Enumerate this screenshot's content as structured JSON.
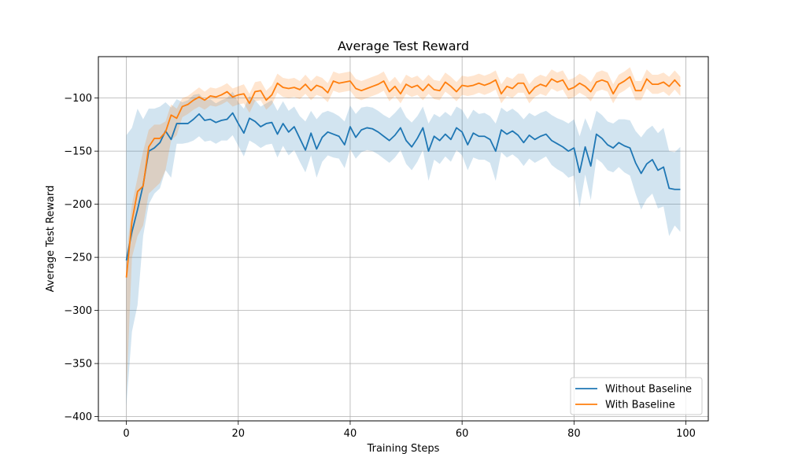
{
  "chart_data": {
    "type": "line",
    "title": "Average Test Reward",
    "xlabel": "Training Steps",
    "ylabel": "Average Test Reward",
    "xlim": [
      -5,
      104
    ],
    "ylim": [
      -404,
      -61
    ],
    "xticks": [
      0,
      20,
      40,
      60,
      80,
      100
    ],
    "yticks": [
      -400,
      -350,
      -300,
      -250,
      -200,
      -150,
      -100
    ],
    "grid": true,
    "legend_position": "lower-right",
    "colors": {
      "without": "#1f77b4",
      "with": "#ff7f0e"
    },
    "x_start": 0,
    "series": [
      {
        "name": "Without Baseline",
        "color": "#1f77b4",
        "values": [
          -253,
          -226,
          -205,
          -182,
          -150,
          -147,
          -142,
          -131,
          -139,
          -124,
          -124,
          -124,
          -120,
          -115,
          -121,
          -120,
          -123,
          -121,
          -120,
          -114,
          -124,
          -133,
          -119,
          -122,
          -127,
          -124,
          -123,
          -134,
          -124,
          -132,
          -127,
          -138,
          -149,
          -133,
          -148,
          -137,
          -132,
          -134,
          -136,
          -144,
          -127,
          -137,
          -130,
          -128,
          -129,
          -132,
          -136,
          -140,
          -135,
          -128,
          -140,
          -146,
          -138,
          -128,
          -150,
          -136,
          -140,
          -134,
          -139,
          -128,
          -132,
          -144,
          -133,
          -136,
          -136,
          -139,
          -150,
          -130,
          -134,
          -131,
          -135,
          -142,
          -135,
          -139,
          -136,
          -134,
          -140,
          -143,
          -146,
          -150,
          -147,
          -170,
          -146,
          -164,
          -134,
          -138,
          -144,
          -147,
          -142,
          -145,
          -147,
          -161,
          -171,
          -162,
          -158,
          -168,
          -165,
          -185,
          -186,
          -186
        ],
        "upper": [
          -135,
          -128,
          -110,
          -120,
          -110,
          -110,
          -108,
          -104,
          -109,
          -101,
          -104,
          -102,
          -97,
          -96,
          -102,
          -101,
          -105,
          -102,
          -100,
          -94,
          -104,
          -110,
          -98,
          -102,
          -108,
          -105,
          -102,
          -112,
          -103,
          -112,
          -108,
          -117,
          -122,
          -112,
          -120,
          -114,
          -112,
          -114,
          -117,
          -122,
          -107,
          -115,
          -109,
          -108,
          -109,
          -112,
          -116,
          -119,
          -114,
          -108,
          -118,
          -123,
          -117,
          -108,
          -124,
          -115,
          -118,
          -113,
          -117,
          -108,
          -111,
          -120,
          -111,
          -115,
          -114,
          -117,
          -124,
          -109,
          -113,
          -110,
          -114,
          -120,
          -114,
          -117,
          -114,
          -112,
          -116,
          -119,
          -121,
          -124,
          -120,
          -136,
          -119,
          -131,
          -112,
          -116,
          -122,
          -124,
          -120,
          -120,
          -121,
          -131,
          -137,
          -130,
          -126,
          -133,
          -128,
          -150,
          -151,
          -146
        ],
        "lower": [
          -390,
          -320,
          -295,
          -230,
          -200,
          -190,
          -185,
          -168,
          -175,
          -143,
          -143,
          -142,
          -140,
          -136,
          -141,
          -140,
          -143,
          -140,
          -140,
          -135,
          -145,
          -155,
          -140,
          -143,
          -147,
          -144,
          -143,
          -156,
          -145,
          -154,
          -149,
          -160,
          -170,
          -154,
          -175,
          -160,
          -154,
          -156,
          -157,
          -166,
          -148,
          -157,
          -151,
          -149,
          -150,
          -153,
          -157,
          -161,
          -156,
          -149,
          -162,
          -168,
          -160,
          -149,
          -178,
          -158,
          -162,
          -155,
          -160,
          -149,
          -154,
          -168,
          -156,
          -158,
          -158,
          -161,
          -178,
          -151,
          -156,
          -153,
          -157,
          -164,
          -157,
          -161,
          -158,
          -155,
          -163,
          -167,
          -170,
          -175,
          -173,
          -203,
          -172,
          -196,
          -157,
          -161,
          -168,
          -170,
          -165,
          -170,
          -173,
          -190,
          -205,
          -195,
          -190,
          -204,
          -202,
          -230,
          -220,
          -226
        ]
      },
      {
        "name": "With Baseline",
        "color": "#ff7f0e",
        "values": [
          -269,
          -216,
          -188,
          -183,
          -146,
          -138,
          -138,
          -132,
          -116,
          -119,
          -108,
          -106,
          -102,
          -99,
          -102,
          -98,
          -99,
          -97,
          -94,
          -99,
          -97,
          -96,
          -105,
          -94,
          -93,
          -102,
          -97,
          -86,
          -90,
          -91,
          -90,
          -92,
          -87,
          -93,
          -88,
          -90,
          -95,
          -84,
          -86,
          -85,
          -84,
          -91,
          -93,
          -91,
          -89,
          -87,
          -84,
          -94,
          -89,
          -96,
          -87,
          -90,
          -88,
          -93,
          -87,
          -92,
          -93,
          -85,
          -89,
          -94,
          -88,
          -89,
          -88,
          -86,
          -88,
          -86,
          -83,
          -96,
          -89,
          -91,
          -86,
          -86,
          -96,
          -90,
          -87,
          -89,
          -82,
          -85,
          -83,
          -92,
          -90,
          -86,
          -89,
          -94,
          -85,
          -83,
          -85,
          -96,
          -87,
          -84,
          -80,
          -93,
          -93,
          -82,
          -87,
          -87,
          -85,
          -89,
          -83,
          -89
        ],
        "upper": [
          -250,
          -200,
          -175,
          -150,
          -130,
          -125,
          -125,
          -122,
          -106,
          -110,
          -100,
          -98,
          -94,
          -90,
          -94,
          -90,
          -91,
          -89,
          -86,
          -91,
          -89,
          -87,
          -96,
          -85,
          -84,
          -93,
          -88,
          -77,
          -81,
          -82,
          -81,
          -84,
          -78,
          -84,
          -79,
          -81,
          -86,
          -75,
          -77,
          -76,
          -75,
          -82,
          -84,
          -82,
          -80,
          -78,
          -75,
          -85,
          -80,
          -87,
          -78,
          -81,
          -79,
          -84,
          -78,
          -83,
          -84,
          -76,
          -80,
          -85,
          -79,
          -80,
          -79,
          -77,
          -79,
          -77,
          -74,
          -87,
          -80,
          -82,
          -77,
          -77,
          -87,
          -81,
          -78,
          -80,
          -73,
          -76,
          -74,
          -83,
          -81,
          -77,
          -80,
          -85,
          -76,
          -74,
          -76,
          -87,
          -78,
          -75,
          -71,
          -84,
          -84,
          -73,
          -78,
          -78,
          -76,
          -80,
          -74,
          -80
        ],
        "lower": [
          -380,
          -250,
          -230,
          -220,
          -190,
          -185,
          -180,
          -168,
          -140,
          -135,
          -118,
          -115,
          -111,
          -108,
          -111,
          -107,
          -108,
          -106,
          -103,
          -108,
          -106,
          -105,
          -114,
          -103,
          -102,
          -111,
          -106,
          -95,
          -99,
          -100,
          -99,
          -101,
          -96,
          -102,
          -97,
          -99,
          -104,
          -93,
          -95,
          -94,
          -93,
          -100,
          -102,
          -100,
          -98,
          -96,
          -93,
          -103,
          -98,
          -105,
          -96,
          -99,
          -97,
          -102,
          -96,
          -101,
          -102,
          -94,
          -98,
          -103,
          -97,
          -98,
          -97,
          -95,
          -97,
          -95,
          -92,
          -105,
          -98,
          -100,
          -95,
          -95,
          -105,
          -99,
          -96,
          -98,
          -91,
          -94,
          -92,
          -101,
          -99,
          -95,
          -98,
          -103,
          -94,
          -92,
          -94,
          -105,
          -96,
          -93,
          -89,
          -102,
          -102,
          -91,
          -96,
          -96,
          -94,
          -98,
          -92,
          -98
        ]
      }
    ]
  }
}
